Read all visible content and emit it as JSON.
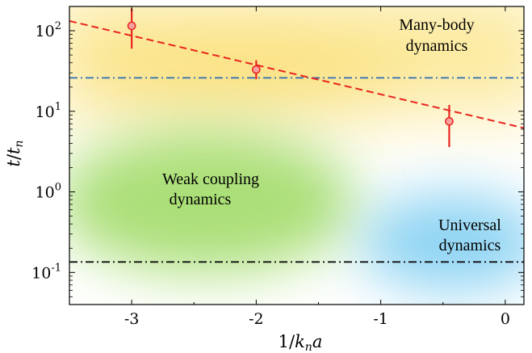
{
  "chart_data": {
    "type": "scatter",
    "xlabel": "1/k_n a",
    "ylabel": "t/t_n",
    "xlim": [
      -3.5,
      0.15
    ],
    "ylim": [
      0.04,
      200
    ],
    "yscale": "log",
    "xticks": [
      -3,
      -2,
      -1,
      0
    ],
    "xtick_labels": [
      "-3",
      "-2",
      "-1",
      "0"
    ],
    "yticks": [
      0.1,
      1,
      10,
      100
    ],
    "ytick_labels": [
      {
        "base": "10",
        "exp": "-1"
      },
      {
        "base": "10",
        "exp": "0"
      },
      {
        "base": "10",
        "exp": "1"
      },
      {
        "base": "10",
        "exp": "2"
      }
    ],
    "points": [
      {
        "x": -3.0,
        "y": 115,
        "yerr_low": 60,
        "yerr_high": 190
      },
      {
        "x": -2.0,
        "y": 33,
        "yerr_low": 25,
        "yerr_high": 43
      },
      {
        "x": -0.45,
        "y": 7.5,
        "yerr_low": 3.6,
        "yerr_high": 12
      }
    ],
    "fit_line": {
      "x": [
        -3.5,
        0.15
      ],
      "y": [
        132,
        6.2
      ],
      "style": "dashed",
      "color": "#e8251e"
    },
    "hlines": [
      {
        "y": 26,
        "style": "dash-dot",
        "color": "#2e6db4"
      },
      {
        "y": 0.135,
        "style": "dash-dot",
        "color": "#111111"
      }
    ],
    "regions": [
      {
        "name": "many-body",
        "lines": [
          "Many-body",
          "dynamics"
        ],
        "color": "#f9d84e"
      },
      {
        "name": "weak-coupling",
        "lines": [
          "Weak coupling",
          "dynamics"
        ],
        "color": "#8fd44a"
      },
      {
        "name": "universal",
        "lines": [
          "Universal",
          "dynamics"
        ],
        "color": "#5cc0ee"
      }
    ],
    "grid": false,
    "legend": "none"
  }
}
